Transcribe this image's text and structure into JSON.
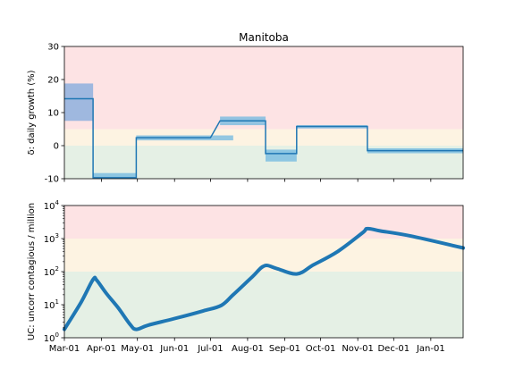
{
  "chart_data": [
    {
      "type": "line",
      "title": "Manitoba",
      "ylabel": "δ: daily growth (%)",
      "ylim": [
        -10,
        30
      ],
      "yticks": [
        -10,
        0,
        10,
        20,
        30
      ],
      "xlim": [
        "2020-03-01",
        "2021-01-28"
      ],
      "xtick_labels": [
        "Mar-01",
        "Apr-01",
        "May-01",
        "Jun-01",
        "Jul-01",
        "Aug-01",
        "Sep-01",
        "Oct-01",
        "Nov-01",
        "Dec-01",
        "Jan-01"
      ],
      "bands": [
        {
          "from": -10,
          "to": 0,
          "color": "#e5f0e5"
        },
        {
          "from": 0,
          "to": 5,
          "color": "#fdf3e2"
        },
        {
          "from": 5,
          "to": 30,
          "color": "#fde3e4"
        }
      ],
      "series": [
        {
          "color": "#1f77b4",
          "segments": [
            {
              "start": "2020-03-01",
              "end": "2020-03-25",
              "value": 14.2,
              "low": 7.5,
              "high": 18.8
            },
            {
              "start": "2020-03-25",
              "end": "2020-04-30",
              "value": -9.7,
              "low": -10,
              "high": -8.3
            },
            {
              "start": "2020-04-30",
              "end": "2020-07-01",
              "value": 2.4,
              "low": 1.6,
              "high": 3.1
            },
            {
              "start": "2020-07-01",
              "end": "2020-07-20",
              "value": 2.4,
              "low": 1.6,
              "high": 3.1
            },
            {
              "start": "2020-07-09",
              "end": "2020-08-16",
              "value": 7.5,
              "low": 6.2,
              "high": 8.8
            },
            {
              "start": "2020-08-16",
              "end": "2020-09-11",
              "value": -2.4,
              "low": -4.8,
              "high": -1.2
            },
            {
              "start": "2020-09-11",
              "end": "2020-11-09",
              "value": 5.8,
              "low": 5.2,
              "high": 6.2
            },
            {
              "start": "2020-11-09",
              "end": "2021-01-28",
              "value": -1.5,
              "low": -2.3,
              "high": -0.8
            }
          ]
        }
      ]
    },
    {
      "type": "line",
      "ylabel": "UC: uncorr contagious / million",
      "yscale": "log",
      "ylim": [
        1,
        10000
      ],
      "ytick_labels": [
        {
          "base": "10",
          "exp": "0"
        },
        {
          "base": "10",
          "exp": "1"
        },
        {
          "base": "10",
          "exp": "2"
        },
        {
          "base": "10",
          "exp": "3"
        },
        {
          "base": "10",
          "exp": "4"
        }
      ],
      "xlim": [
        "2020-03-01",
        "2021-01-28"
      ],
      "xtick_labels": [
        "Mar-01",
        "Apr-01",
        "May-01",
        "Jun-01",
        "Jul-01",
        "Aug-01",
        "Sep-01",
        "Oct-01",
        "Nov-01",
        "Dec-01",
        "Jan-01"
      ],
      "bands": [
        {
          "from": 1,
          "to": 100,
          "color": "#e5f0e5"
        },
        {
          "from": 100,
          "to": 1000,
          "color": "#fdf3e2"
        },
        {
          "from": 1000,
          "to": 10000,
          "color": "#fde3e4"
        }
      ],
      "series": [
        {
          "color": "#1f77b4",
          "points": [
            [
              "2020-03-01",
              1.8
            ],
            [
              "2020-03-15",
              12
            ],
            [
              "2020-03-25",
              58
            ],
            [
              "2020-03-28",
              55
            ],
            [
              "2020-04-05",
              22
            ],
            [
              "2020-04-15",
              8
            ],
            [
              "2020-04-25",
              2.5
            ],
            [
              "2020-04-30",
              1.8
            ],
            [
              "2020-05-10",
              2.4
            ],
            [
              "2020-06-01",
              3.8
            ],
            [
              "2020-06-25",
              6.5
            ],
            [
              "2020-07-10",
              9.5
            ],
            [
              "2020-07-20",
              20
            ],
            [
              "2020-08-05",
              70
            ],
            [
              "2020-08-15",
              150
            ],
            [
              "2020-08-25",
              125
            ],
            [
              "2020-09-11",
              85
            ],
            [
              "2020-09-25",
              160
            ],
            [
              "2020-10-15",
              400
            ],
            [
              "2020-11-05",
              1500
            ],
            [
              "2020-11-09",
              2000
            ],
            [
              "2020-11-20",
              1700
            ],
            [
              "2020-12-15",
              1200
            ],
            [
              "2021-01-28",
              520
            ]
          ]
        }
      ]
    }
  ]
}
